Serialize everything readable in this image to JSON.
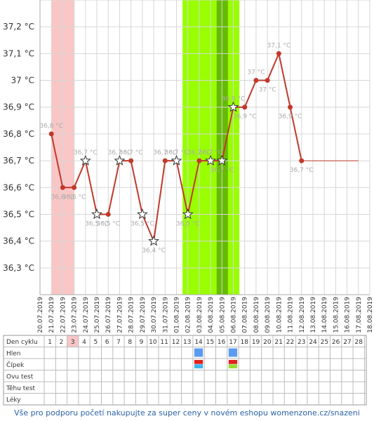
{
  "chart_data": {
    "type": "line",
    "title": "",
    "xlabel": "",
    "ylabel": "",
    "unit": " °C",
    "ylim": [
      36.2,
      37.3
    ],
    "yticks": [
      36.3,
      36.4,
      36.5,
      36.6,
      36.7,
      36.8,
      36.9,
      37.0,
      37.1,
      37.2
    ],
    "ytick_labels": [
      "36,3 °C",
      "36,4 °C",
      "36,5 °C",
      "36,6 °C",
      "36,7 °C",
      "36,8 °C",
      "36,9 °C",
      "37 °C",
      "37,1 °C",
      "37,2 °C"
    ],
    "grid": true,
    "x_dates": [
      "20.07.2019",
      "21.07.2019",
      "22.07.2019",
      "23.07.2019",
      "24.07.2019",
      "25.07.2019",
      "26.07.2019",
      "27.07.2019",
      "28.07.2019",
      "29.07.2019",
      "30.07.2019",
      "31.07.2019",
      "01.08.2019",
      "02.08.2019",
      "03.08.2019",
      "04.08.2019",
      "05.08.2019",
      "06.08.2019",
      "07.08.2019",
      "08.08.2019",
      "09.08.2019",
      "10.08.2019",
      "11.08.2019",
      "12.08.2019",
      "13.08.2019",
      "14.08.2019",
      "15.08.2019",
      "16.08.2019",
      "17.08.2019",
      "18.08.2019"
    ],
    "series": [
      {
        "values": [
          null,
          36.8,
          36.6,
          36.6,
          36.7,
          36.5,
          36.5,
          36.7,
          36.7,
          36.5,
          36.4,
          36.7,
          36.7,
          36.5,
          36.7,
          36.7,
          36.7,
          36.9,
          36.9,
          37.0,
          37.0,
          37.1,
          36.9,
          36.7
        ],
        "labels": [
          "",
          "36,8 °C",
          "36,6 °C",
          "36,6 °C",
          "36,7 °C",
          "36,5 °C",
          "36,5 °C",
          "36,7 °C",
          "36,7 °C",
          "36,5 °C",
          "36,4 °C",
          "36,7 °C",
          "36,7 °C",
          "36,5 °C",
          "36,7 °C",
          "36,7 °C",
          "36,7 °C",
          "36,9 °C",
          "36,9 °C",
          "37 °C",
          "37 °C",
          "37,1 °C",
          "36,9 °C",
          "36,7 °C"
        ],
        "star_days": [
          4,
          5,
          7,
          9,
          10,
          12,
          13,
          15,
          16,
          17
        ],
        "color": "#c0392b"
      }
    ],
    "baseline": {
      "value": 36.7,
      "from_index": 23,
      "to_index": 28,
      "color": "#c0392b"
    },
    "shaded": [
      {
        "kind": "menstruation",
        "from": 1,
        "to": 3,
        "color": "#f9c6c6"
      },
      {
        "kind": "fertile",
        "from": 12.5,
        "to": 17.5,
        "color": "#99ff00"
      },
      {
        "kind": "ovulation",
        "from": 15.5,
        "to": 16.5,
        "color": "#66bb00"
      }
    ]
  },
  "cycle_table": {
    "header_label": "Den cyklu",
    "days": [
      "1",
      "2",
      "3",
      "4",
      "5",
      "6",
      "7",
      "8",
      "9",
      "10",
      "11",
      "12",
      "13",
      "14",
      "15",
      "16",
      "17",
      "18",
      "19",
      "20",
      "21",
      "22",
      "23",
      "24",
      "25",
      "26",
      "27",
      "28"
    ],
    "highlight_day_index": 2,
    "rows": [
      "Hlen",
      "Čípek",
      "Ovu test",
      "Těhu test",
      "Léky"
    ],
    "markers": [
      {
        "row": 0,
        "day_index": 13,
        "colors": [
          "#5b9bf0"
        ]
      },
      {
        "row": 0,
        "day_index": 16,
        "colors": [
          "#5b9bf0"
        ]
      },
      {
        "row": 1,
        "day_index": 13,
        "colors": [
          "#e02020",
          "#3fb4f0"
        ]
      },
      {
        "row": 1,
        "day_index": 16,
        "colors": [
          "#e02020",
          "#99dd33"
        ]
      }
    ]
  },
  "footer": {
    "text": "Vše pro podporu početí nakupujte za super ceny v novém eshopu womenzone.cz/snazeni"
  }
}
